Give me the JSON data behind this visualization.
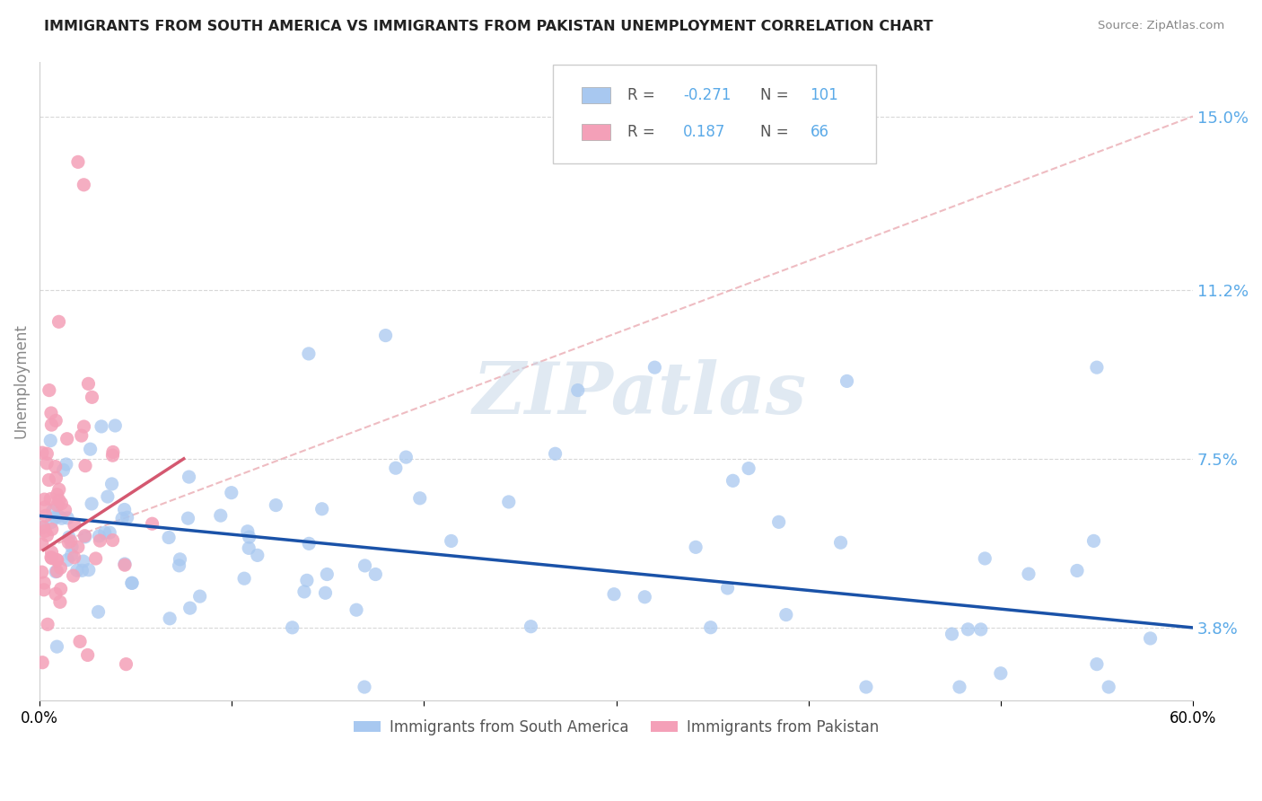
{
  "title": "IMMIGRANTS FROM SOUTH AMERICA VS IMMIGRANTS FROM PAKISTAN UNEMPLOYMENT CORRELATION CHART",
  "source": "Source: ZipAtlas.com",
  "ylabel": "Unemployment",
  "yticks": [
    3.8,
    7.5,
    11.2,
    15.0
  ],
  "ytick_labels": [
    "3.8%",
    "7.5%",
    "11.2%",
    "15.0%"
  ],
  "xlim": [
    0.0,
    60.0
  ],
  "ylim": [
    2.2,
    16.2
  ],
  "blue_color": "#A8C8F0",
  "pink_color": "#F4A0B8",
  "blue_line_color": "#1A52A8",
  "pink_solid_color": "#D45870",
  "pink_dashed_color": "#E8A0A8",
  "legend_r_blue": "-0.271",
  "legend_n_blue": "101",
  "legend_r_pink": "0.187",
  "legend_n_pink": "66",
  "legend_label_blue": "Immigrants from South America",
  "legend_label_pink": "Immigrants from Pakistan",
  "watermark": "ZIPatlas",
  "background_color": "#ffffff",
  "grid_color": "#d8d8d8",
  "blue_trendline_x0": 0,
  "blue_trendline_y0": 6.25,
  "blue_trendline_x1": 60,
  "blue_trendline_y1": 3.8,
  "pink_solid_x0": 0.2,
  "pink_solid_y0": 5.5,
  "pink_solid_x1": 7.5,
  "pink_solid_y1": 7.5,
  "pink_dashed_x0": 0,
  "pink_dashed_y0": 5.5,
  "pink_dashed_x1": 60,
  "pink_dashed_y1": 15.0
}
